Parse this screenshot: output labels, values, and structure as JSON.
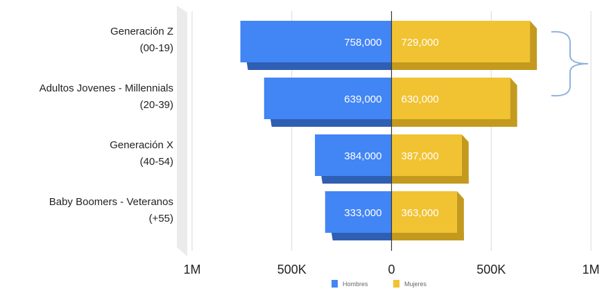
{
  "chart_data": {
    "type": "bar",
    "orientation": "horizontal-diverging",
    "categories": [
      [
        "Generación Z",
        "(00-19)"
      ],
      [
        "Adultos Jovenes - Millennials",
        "(20-39)"
      ],
      [
        "Generación X",
        "(40-54)"
      ],
      [
        "Baby Boomers - Veteranos",
        "(+55)"
      ]
    ],
    "series": [
      {
        "name": "Hombres",
        "values": [
          758000,
          639000,
          384000,
          333000
        ],
        "labels": [
          "758,000",
          "639,000",
          "384,000",
          "333,000"
        ],
        "color": "#4285F4",
        "side_color": "#2F5FB3",
        "top_color": "#6FA2F7"
      },
      {
        "name": "Mujeres",
        "values": [
          729000,
          630000,
          387000,
          363000
        ],
        "labels": [
          "729,000",
          "630,000",
          "387,000",
          "363,000"
        ],
        "color": "#F1C232",
        "side_color": "#C39A1E",
        "top_color": "#F6D366"
      }
    ],
    "xlim": [
      -1000000,
      1000000
    ],
    "x_ticks": [
      -1000000,
      -500000,
      0,
      500000,
      1000000
    ],
    "x_tick_labels": [
      "1M",
      "500K",
      "0",
      "500K",
      "1M"
    ],
    "grid": true,
    "legend_position": "bottom",
    "annotation": "brace spanning Generación Z and Adultos Jovenes - Millennials",
    "brace_color": "#8FB3DE"
  }
}
